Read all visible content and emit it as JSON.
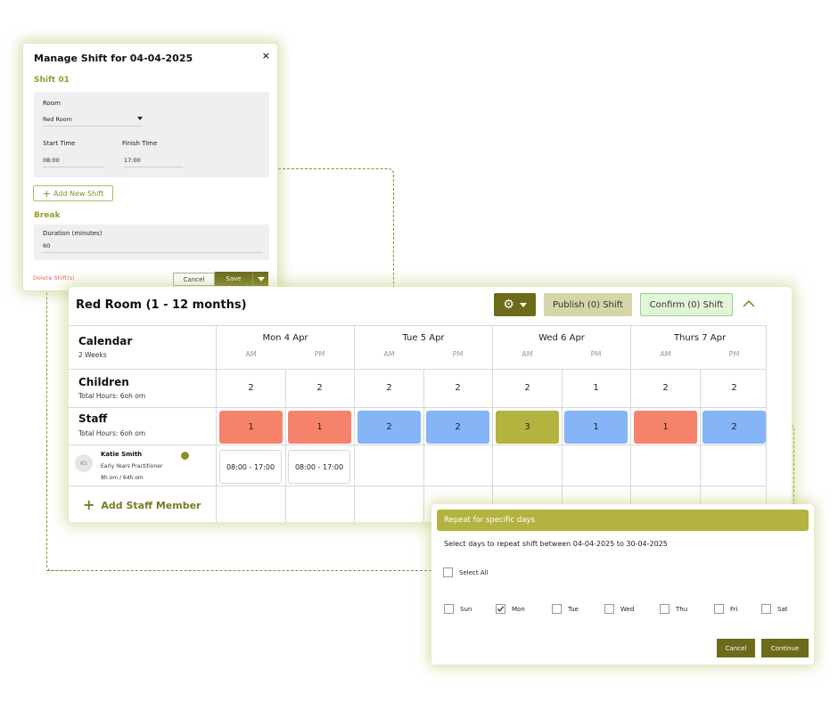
{
  "manage_shift": {
    "title": "Manage Shift for 04-04-2025",
    "close_symbol": "×",
    "shift_heading": "Shift 01",
    "room_label": "Room",
    "room_value": "Red Room",
    "start_time_label": "Start Time",
    "start_time_value": "08:00",
    "finish_time_label": "Finish Time",
    "finish_time_value": "17:00",
    "add_shift_label": "Add New Shift",
    "break_heading": "Break",
    "duration_label": "Duration (minutes)",
    "duration_value": "60",
    "delete_label": "Delete Shift(s)",
    "cancel_label": "Cancel",
    "save_label": "Save"
  },
  "calendar": {
    "title": "Red Room (1 - 12 months)",
    "publish_label": "Publish (0) Shift",
    "confirm_label": "Confirm (0) Shift",
    "calendar_label": "Calendar",
    "calendar_sub": "2 Weeks",
    "children_label": "Children",
    "children_hours": "Total Hours: 6oh om",
    "staff_label": "Staff",
    "staff_hours": "Total Hours: 6oh om",
    "am_label": "AM",
    "pm_label": "PM",
    "days": [
      {
        "label": "Mon 4 Apr",
        "children": [
          "2",
          "2"
        ],
        "staff": [
          "1",
          "1"
        ],
        "staff_colors": [
          "#f7826c",
          "#f7826c"
        ]
      },
      {
        "label": "Tue 5 Apr",
        "children": [
          "2",
          "2"
        ],
        "staff": [
          "2",
          "2"
        ],
        "staff_colors": [
          "#85b4f7",
          "#85b4f7"
        ]
      },
      {
        "label": "Wed 6 Apr",
        "children": [
          "2",
          "1"
        ],
        "staff": [
          "3",
          "1"
        ],
        "staff_colors": [
          "#b3b33f",
          "#85b4f7"
        ]
      },
      {
        "label": "Thurs 7 Apr",
        "children": [
          "2",
          "2"
        ],
        "staff": [
          "1",
          "2"
        ],
        "staff_colors": [
          "#f7826c",
          "#85b4f7"
        ]
      }
    ],
    "member": {
      "initials": "KS",
      "name": "Katie Smith",
      "role": "Early Years Practitioner",
      "hours": "8h om / 64h om",
      "shifts": [
        "08:00 - 17:00",
        "08:00 - 17:00"
      ]
    },
    "add_member_label": "Add Staff Member"
  },
  "repeat": {
    "title": "Repeat for specific days",
    "description": "Select days to repeat shift between 04-04-2025 to 30-04-2025",
    "select_all_label": "Select All",
    "days": [
      {
        "label": "Sun",
        "checked": false
      },
      {
        "label": "Mon",
        "checked": true
      },
      {
        "label": "Tue",
        "checked": false
      },
      {
        "label": "Wed",
        "checked": false
      },
      {
        "label": "Thu",
        "checked": false
      },
      {
        "label": "Fri",
        "checked": false
      },
      {
        "label": "Sat",
        "checked": false
      }
    ],
    "cancel_label": "Cancel",
    "continue_label": "Continue"
  },
  "icons": {
    "gear": "gear-icon",
    "collapse": "chevron-up-icon",
    "plus": "plus-icon",
    "check": "check-icon"
  },
  "colors": {
    "accent_dark": "#6b6b1a",
    "accent": "#b3b33f",
    "red_shift": "#f7826c",
    "blue_shift": "#85b4f7"
  }
}
